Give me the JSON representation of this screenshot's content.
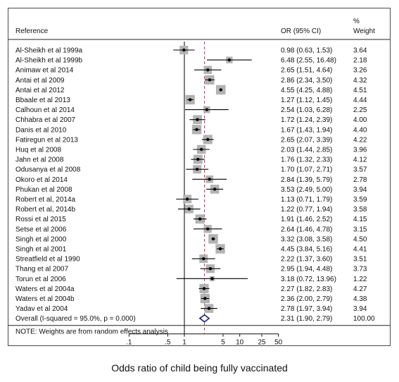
{
  "chart_data": {
    "type": "forest",
    "x_scale": "log",
    "header": {
      "reference": "Reference",
      "or_ci": "OR (95% CI)",
      "weight_pct": "%",
      "weight": "Weight"
    },
    "studies": [
      {
        "reference": "Al-Sheikh et al 1999a",
        "or": 0.98,
        "lower": 0.63,
        "upper": 1.53,
        "weight": 3.64,
        "or_text": "0.98 (0.63, 1.53)",
        "weight_text": "3.64"
      },
      {
        "reference": "Al-Sheikh et al 1999b",
        "or": 6.48,
        "lower": 2.55,
        "upper": 16.48,
        "weight": 2.18,
        "or_text": "6.48 (2.55, 16.48)",
        "weight_text": "2.18"
      },
      {
        "reference": "Animaw et al 2014",
        "or": 2.65,
        "lower": 1.51,
        "upper": 4.64,
        "weight": 3.26,
        "or_text": "2.65 (1.51, 4.64)",
        "weight_text": "3.26"
      },
      {
        "reference": "Antai et al 2009",
        "or": 2.86,
        "lower": 2.34,
        "upper": 3.5,
        "weight": 4.32,
        "or_text": "2.86 (2.34, 3.50)",
        "weight_text": "4.32"
      },
      {
        "reference": "Antai et al 2012",
        "or": 4.55,
        "lower": 4.25,
        "upper": 4.88,
        "weight": 4.51,
        "or_text": "4.55 (4.25, 4.88)",
        "weight_text": "4.51"
      },
      {
        "reference": "Bbaale et al 2013",
        "or": 1.27,
        "lower": 1.12,
        "upper": 1.45,
        "weight": 4.44,
        "or_text": "1.27 (1.12, 1.45)",
        "weight_text": "4.44"
      },
      {
        "reference": "Calhoun et al 2014",
        "or": 2.54,
        "lower": 1.03,
        "upper": 6.28,
        "weight": 2.25,
        "or_text": "2.54 (1.03, 6.28)",
        "weight_text": "2.25"
      },
      {
        "reference": "Chhabra et al 2007",
        "or": 1.72,
        "lower": 1.24,
        "upper": 2.39,
        "weight": 4.0,
        "or_text": "1.72 (1.24, 2.39)",
        "weight_text": "4.00"
      },
      {
        "reference": "Danis et al 2010",
        "or": 1.67,
        "lower": 1.43,
        "upper": 1.94,
        "weight": 4.4,
        "or_text": "1.67 (1.43, 1.94)",
        "weight_text": "4.40"
      },
      {
        "reference": "Fatiregun et al 2013",
        "or": 2.65,
        "lower": 2.07,
        "upper": 3.39,
        "weight": 4.22,
        "or_text": "2.65 (2.07, 3.39)",
        "weight_text": "4.22"
      },
      {
        "reference": "Huq et al 2008",
        "or": 2.03,
        "lower": 1.44,
        "upper": 2.85,
        "weight": 3.96,
        "or_text": "2.03 (1.44, 2.85)",
        "weight_text": "3.96"
      },
      {
        "reference": "Jahn et al 2008",
        "or": 1.76,
        "lower": 1.32,
        "upper": 2.33,
        "weight": 4.12,
        "or_text": "1.76 (1.32, 2.33)",
        "weight_text": "4.12"
      },
      {
        "reference": "Odusanya et al 2008",
        "or": 1.7,
        "lower": 1.07,
        "upper": 2.71,
        "weight": 3.57,
        "or_text": "1.70 (1.07, 2.71)",
        "weight_text": "3.57"
      },
      {
        "reference": "Okoro et al 2014",
        "or": 2.84,
        "lower": 1.39,
        "upper": 5.79,
        "weight": 2.78,
        "or_text": "2.84 (1.39, 5.79)",
        "weight_text": "2.78"
      },
      {
        "reference": "Phukan et al 2008",
        "or": 3.53,
        "lower": 2.49,
        "upper": 5.0,
        "weight": 3.94,
        "or_text": "3.53 (2.49, 5.00)",
        "weight_text": "3.94"
      },
      {
        "reference": "Robert et al, 2014a",
        "or": 1.13,
        "lower": 0.71,
        "upper": 1.79,
        "weight": 3.59,
        "or_text": "1.13 (0.71, 1.79)",
        "weight_text": "3.59"
      },
      {
        "reference": "Robert et al, 2014b",
        "or": 1.22,
        "lower": 0.77,
        "upper": 1.94,
        "weight": 3.58,
        "or_text": "1.22 (0.77, 1.94)",
        "weight_text": "3.58"
      },
      {
        "reference": "Rossi et al 2015",
        "or": 1.91,
        "lower": 1.46,
        "upper": 2.52,
        "weight": 4.15,
        "or_text": "1.91 (1.46, 2.52)",
        "weight_text": "4.15"
      },
      {
        "reference": "Setse et al 2006",
        "or": 2.64,
        "lower": 1.46,
        "upper": 4.78,
        "weight": 3.15,
        "or_text": "2.64 (1.46, 4.78)",
        "weight_text": "3.15"
      },
      {
        "reference": "Singh et al 2000",
        "or": 3.32,
        "lower": 3.08,
        "upper": 3.58,
        "weight": 4.5,
        "or_text": "3.32 (3.08, 3.58)",
        "weight_text": "4.50"
      },
      {
        "reference": "Singh et al 2001",
        "or": 4.45,
        "lower": 3.84,
        "upper": 5.16,
        "weight": 4.41,
        "or_text": "4.45 (3.84, 5.16)",
        "weight_text": "4.41"
      },
      {
        "reference": "Streatfield et al 1990",
        "or": 2.22,
        "lower": 1.37,
        "upper": 3.6,
        "weight": 3.51,
        "or_text": "2.22 (1.37, 3.60)",
        "weight_text": "3.51"
      },
      {
        "reference": "Thang et al 2007",
        "or": 2.95,
        "lower": 1.94,
        "upper": 4.48,
        "weight": 3.73,
        "or_text": "2.95 (1.94, 4.48)",
        "weight_text": "3.73"
      },
      {
        "reference": "Torun et al 2006",
        "or": 3.18,
        "lower": 0.72,
        "upper": 13.96,
        "weight": 1.22,
        "or_text": "3.18 (0.72, 13.96)",
        "weight_text": "1.22"
      },
      {
        "reference": "Waters et al 2004a",
        "or": 2.27,
        "lower": 1.82,
        "upper": 2.83,
        "weight": 4.27,
        "or_text": "2.27 (1.82, 2.83)",
        "weight_text": "4.27"
      },
      {
        "reference": "Waters et al 2004b",
        "or": 2.36,
        "lower": 2.0,
        "upper": 2.79,
        "weight": 4.38,
        "or_text": "2.36 (2.00, 2.79)",
        "weight_text": "4.38"
      },
      {
        "reference": "Yadav et al 2004",
        "or": 2.78,
        "lower": 1.97,
        "upper": 3.94,
        "weight": 3.94,
        "or_text": "2.78 (1.97, 3.94)",
        "weight_text": "3.94"
      }
    ],
    "overall": {
      "label": "Overall  (I-squared = 95.0%, p = 0.000)",
      "or": 2.31,
      "lower": 1.9,
      "upper": 2.79,
      "weight": 100.0,
      "or_text": "2.31 (1.90, 2.79)",
      "weight_text": "100.00"
    },
    "note": "NOTE: Weights are from random effects analysis",
    "x_ticks": [
      {
        "value": 0.1,
        "label": ".1"
      },
      {
        "value": 0.5,
        "label": ".5"
      },
      {
        "value": 1,
        "label": "1"
      },
      {
        "value": 5,
        "label": "5"
      },
      {
        "value": 10,
        "label": "10"
      },
      {
        "value": 25,
        "label": "25"
      },
      {
        "value": 50,
        "label": "50"
      }
    ],
    "xlim": [
      0.1,
      50
    ],
    "null_line": 1,
    "xlabel": "Odds ratio of child being fully vaccinated",
    "colors": {
      "weight_box": "#b3b3b3",
      "point": "#000000",
      "ci_line": "#000000",
      "null_line": "#000000",
      "overall_line": "#a04050",
      "overall_diamond": "#1a237e"
    }
  }
}
